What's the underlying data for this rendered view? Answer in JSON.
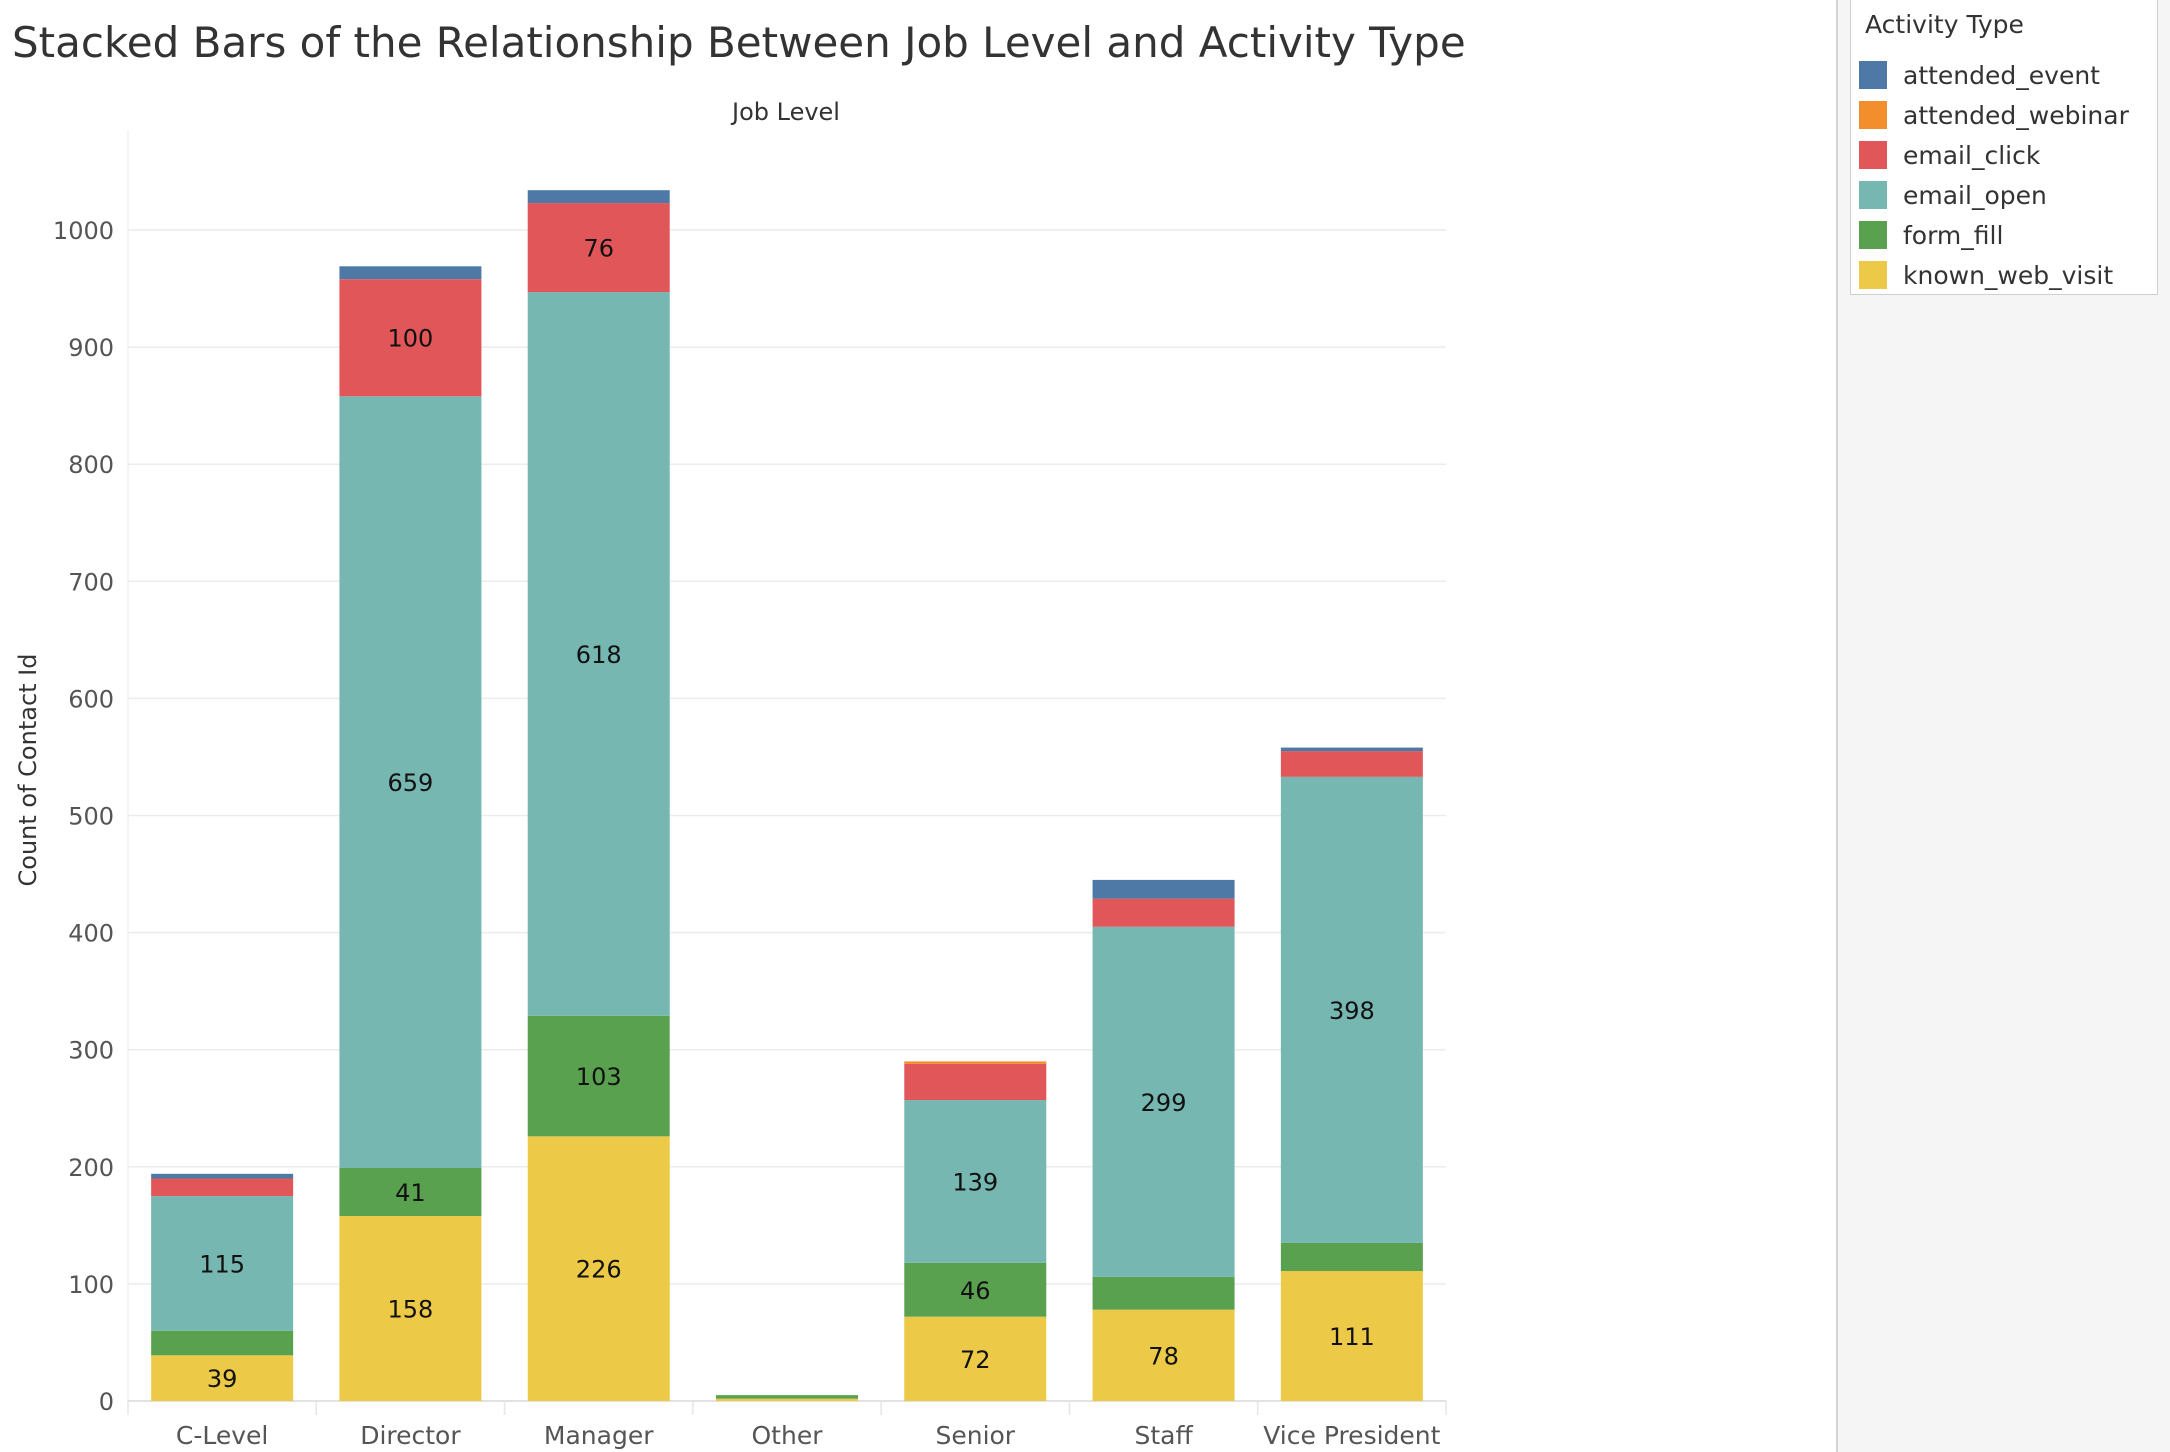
{
  "title": "Stacked Bars of the Relationship Between Job Level and Activity Type",
  "legend": {
    "title": "Activity Type",
    "items": [
      {
        "label": "attended_event",
        "color": "#4e79a7"
      },
      {
        "label": "attended_webinar",
        "color": "#f28e2b"
      },
      {
        "label": "email_click",
        "color": "#e15759"
      },
      {
        "label": "email_open",
        "color": "#76b7b2"
      },
      {
        "label": "form_fill",
        "color": "#59a14f"
      },
      {
        "label": "known_web_visit",
        "color": "#edc948"
      }
    ]
  },
  "chart_data": {
    "type": "bar",
    "stacked": true,
    "title": "Stacked Bars of the Relationship Between Job Level and Activity Type",
    "xlabel": "Job Level",
    "ylabel": "Count of Contact Id",
    "ylim": [
      0,
      1000
    ],
    "yticks": [
      0,
      100,
      200,
      300,
      400,
      500,
      600,
      700,
      800,
      900,
      1000
    ],
    "grid": true,
    "legend_position": "top-right",
    "categories": [
      "C-Level",
      "Director",
      "Manager",
      "Other",
      "Senior",
      "Staff",
      "Vice President"
    ],
    "series": [
      {
        "name": "known_web_visit",
        "color": "#edc948",
        "values": [
          39,
          158,
          226,
          2,
          72,
          78,
          111
        ],
        "labels": [
          "39",
          "158",
          "226",
          "",
          "72",
          "78",
          "111"
        ]
      },
      {
        "name": "form_fill",
        "color": "#59a14f",
        "values": [
          21,
          41,
          103,
          3,
          46,
          28,
          24
        ],
        "labels": [
          "",
          "41",
          "103",
          "",
          "46",
          "",
          ""
        ]
      },
      {
        "name": "email_open",
        "color": "#76b7b2",
        "values": [
          115,
          659,
          618,
          0,
          139,
          299,
          398
        ],
        "labels": [
          "115",
          "659",
          "618",
          "",
          "139",
          "299",
          "398"
        ]
      },
      {
        "name": "email_click",
        "color": "#e15759",
        "values": [
          15,
          100,
          76,
          0,
          31,
          24,
          22
        ],
        "labels": [
          "",
          "100",
          "76",
          "",
          "",
          "",
          ""
        ]
      },
      {
        "name": "attended_webinar",
        "color": "#f28e2b",
        "values": [
          0,
          0,
          0,
          0,
          2,
          0,
          0
        ],
        "labels": [
          "",
          "",
          "",
          "",
          "",
          "",
          ""
        ]
      },
      {
        "name": "attended_event",
        "color": "#4e79a7",
        "values": [
          4,
          11,
          11,
          0,
          0,
          16,
          3
        ],
        "labels": [
          "",
          "",
          "",
          "",
          "",
          "",
          ""
        ]
      }
    ]
  }
}
